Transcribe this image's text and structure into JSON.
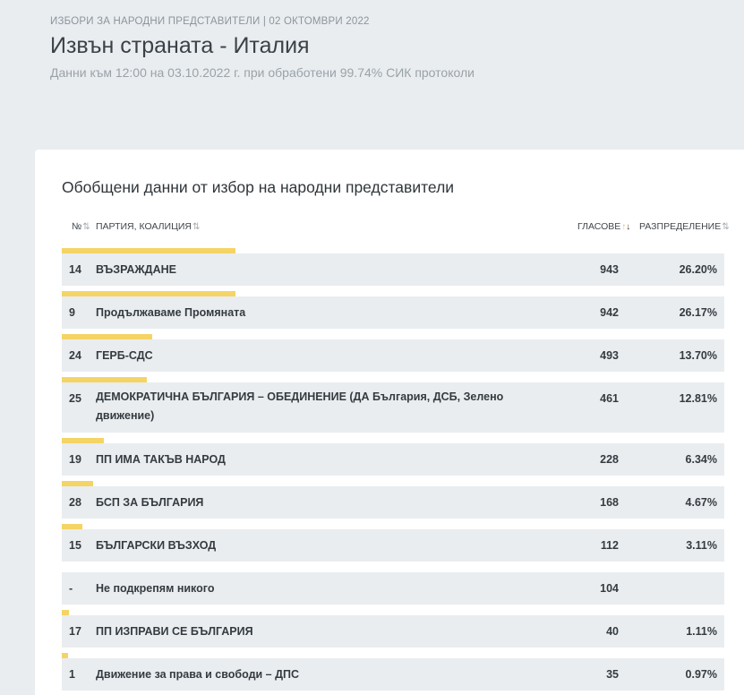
{
  "header": {
    "eyebrow": "ИЗБОРИ ЗА НАРОДНИ ПРЕДСТАВИТЕЛИ | 02 ОКТОМВРИ 2022",
    "title": "Извън страната - Италия",
    "subtitle": "Данни към 12:00 на 03.10.2022 г. при обработени 99.74% СИК протоколи"
  },
  "card": {
    "title": "Обобщени данни от избор на народни представители",
    "columns": {
      "num": "№",
      "party": "ПАРТИЯ, КОАЛИЦИЯ",
      "votes": "ГЛАСОВЕ",
      "dist": "РАЗПРЕДЕЛЕНИЕ"
    }
  },
  "rows": [
    {
      "num": "14",
      "party": "ВЪЗРАЖДАНЕ",
      "votes": "943",
      "dist": "26.20%",
      "share": 26.2
    },
    {
      "num": "9",
      "party": "Продължаваме Промяната",
      "votes": "942",
      "dist": "26.17%",
      "share": 26.17
    },
    {
      "num": "24",
      "party": "ГЕРБ-СДС",
      "votes": "493",
      "dist": "13.70%",
      "share": 13.7
    },
    {
      "num": "25",
      "party": "ДЕМОКРАТИЧНА БЪЛГАРИЯ – ОБЕДИНЕНИЕ (ДА България, ДСБ, Зелено движение)",
      "votes": "461",
      "dist": "12.81%",
      "share": 12.81
    },
    {
      "num": "19",
      "party": "ПП ИМА ТАКЪВ НАРОД",
      "votes": "228",
      "dist": "6.34%",
      "share": 6.34
    },
    {
      "num": "28",
      "party": "БСП ЗА БЪЛГАРИЯ",
      "votes": "168",
      "dist": "4.67%",
      "share": 4.67
    },
    {
      "num": "15",
      "party": "БЪЛГАРСКИ ВЪЗХОД",
      "votes": "112",
      "dist": "3.11%",
      "share": 3.11
    },
    {
      "num": "-",
      "party": "Не подкрепям никого",
      "votes": "104",
      "dist": "",
      "share": 0
    },
    {
      "num": "17",
      "party": "ПП ИЗПРАВИ СЕ БЪЛГАРИЯ",
      "votes": "40",
      "dist": "1.11%",
      "share": 1.11
    },
    {
      "num": "1",
      "party": "Движение за права и свободи – ДПС",
      "votes": "35",
      "dist": "0.97%",
      "share": 0.97
    }
  ]
}
